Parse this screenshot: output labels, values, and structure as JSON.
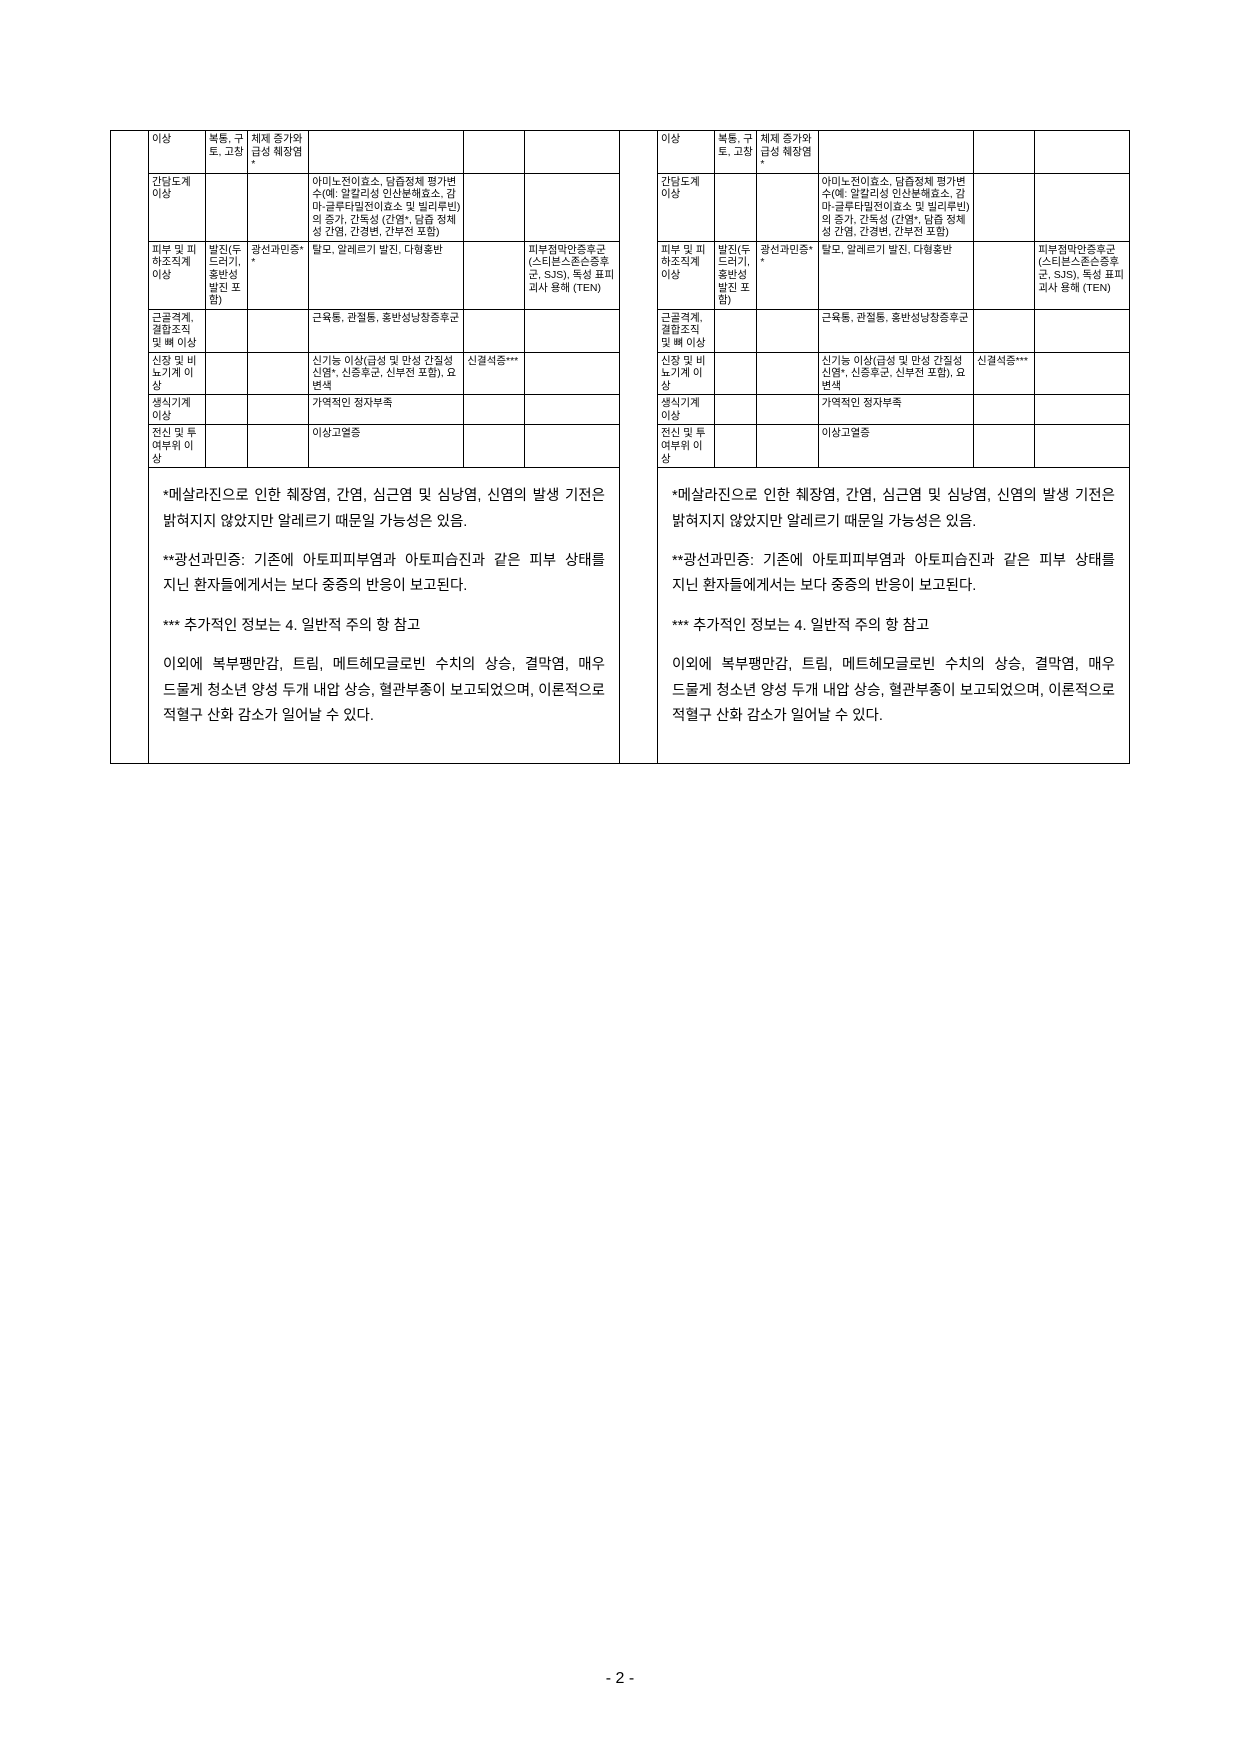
{
  "page_number": "- 2 -",
  "grid": {
    "col_widths_pct": [
      12,
      9,
      13,
      33,
      13,
      20
    ],
    "rows": [
      {
        "cells": [
          "이상",
          "복통, 구토, 고창",
          "체제 증가와 급성 췌장염*",
          "",
          "",
          ""
        ]
      },
      {
        "cells": [
          "간담도계 이상",
          "",
          "",
          "아미노전이효소, 담즙정체 평가변수(예: 알칼리성 인산분해효소, 감마-글루타밀전이효소 및 빌리루빈)의 증가, 간독성 (간염*, 담즙 정체성 간염, 간경변, 간부전 포함)",
          "",
          ""
        ]
      },
      {
        "cells": [
          "피부 및 피하조직계 이상",
          "발진(두드러기, 홍반성 발진 포함)",
          "광선과민증**",
          "탈모, 알레르기 발진, 다형홍반",
          "",
          "피부점막안증후군(스티븐스존슨증후군, SJS), 독성 표피 괴사 용해 (TEN)"
        ]
      },
      {
        "cells": [
          "근골격계, 결합조직 및 뼈 이상",
          "",
          "",
          "근육통, 관절통, 홍반성낭창증후군",
          "",
          ""
        ]
      },
      {
        "cells": [
          "신장 및 비뇨기계 이상",
          "",
          "",
          "신기능 이상(급성 및 만성 간질성 신염*, 신증후군, 신부전 포함), 요 변색",
          "신결석증***",
          ""
        ]
      },
      {
        "cells": [
          "생식기계 이상",
          "",
          "",
          "가역적인 정자부족",
          "",
          ""
        ]
      },
      {
        "cells": [
          "전신 및 투여부위 이상",
          "",
          "",
          "이상고열증",
          "",
          ""
        ]
      }
    ]
  },
  "notes": [
    "*메살라진으로 인한 췌장염, 간염, 심근염 및 심낭염, 신염의 발생 기전은 밝혀지지 않았지만 알레르기 때문일 가능성은 있음.",
    "**광선과민증: 기존에 아토피피부염과 아토피습진과 같은 피부 상태를 지닌 환자들에게서는 보다 중증의 반응이 보고된다.",
    "*** 추가적인 정보는 4. 일반적 주의 항 참고",
    "이외에 복부팽만감, 트림, 메트헤모글로빈 수치의 상승, 결막염, 매우 드물게 청소년 양성 두개 내압 상승, 혈관부종이 보고되었으며, 이론적으로 적혈구 산화 감소가 일어날 수 있다."
  ]
}
